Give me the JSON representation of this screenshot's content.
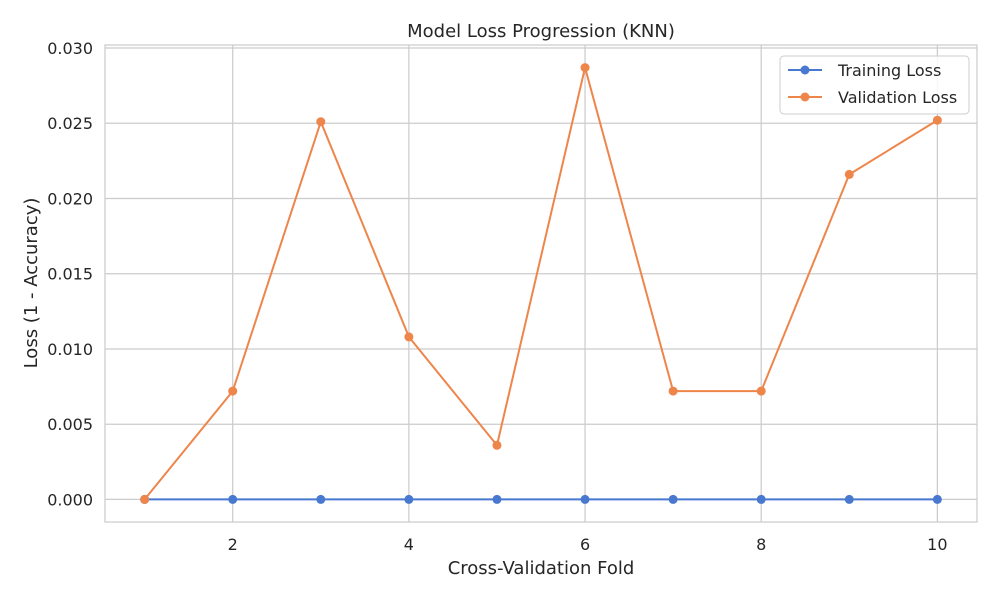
{
  "chart_data": {
    "type": "line",
    "title": "Model Loss Progression (KNN)",
    "xlabel": "Cross-Validation Fold",
    "ylabel": "Loss (1 - Accuracy)",
    "x": [
      1,
      2,
      3,
      4,
      5,
      6,
      7,
      8,
      9,
      10
    ],
    "xlim": [
      0.55,
      10.45
    ],
    "ylim": [
      -0.0015,
      0.0302
    ],
    "xticks": [
      2,
      4,
      6,
      8,
      10
    ],
    "xtick_labels": [
      "2",
      "4",
      "6",
      "8",
      "10"
    ],
    "yticks": [
      0.0,
      0.005,
      0.01,
      0.015,
      0.02,
      0.025,
      0.03
    ],
    "ytick_labels": [
      "0.000",
      "0.005",
      "0.010",
      "0.015",
      "0.020",
      "0.025",
      "0.030"
    ],
    "grid": true,
    "legend_position": "top-right",
    "series": [
      {
        "name": "Training Loss",
        "color": "#4878d0",
        "values": [
          0,
          0,
          0,
          0,
          0,
          0,
          0,
          0,
          0,
          0
        ]
      },
      {
        "name": "Validation Loss",
        "color": "#ee854a",
        "values": [
          0.0,
          0.0072,
          0.0251,
          0.0108,
          0.0036,
          0.0287,
          0.0072,
          0.0072,
          0.0216,
          0.0252
        ]
      }
    ]
  }
}
